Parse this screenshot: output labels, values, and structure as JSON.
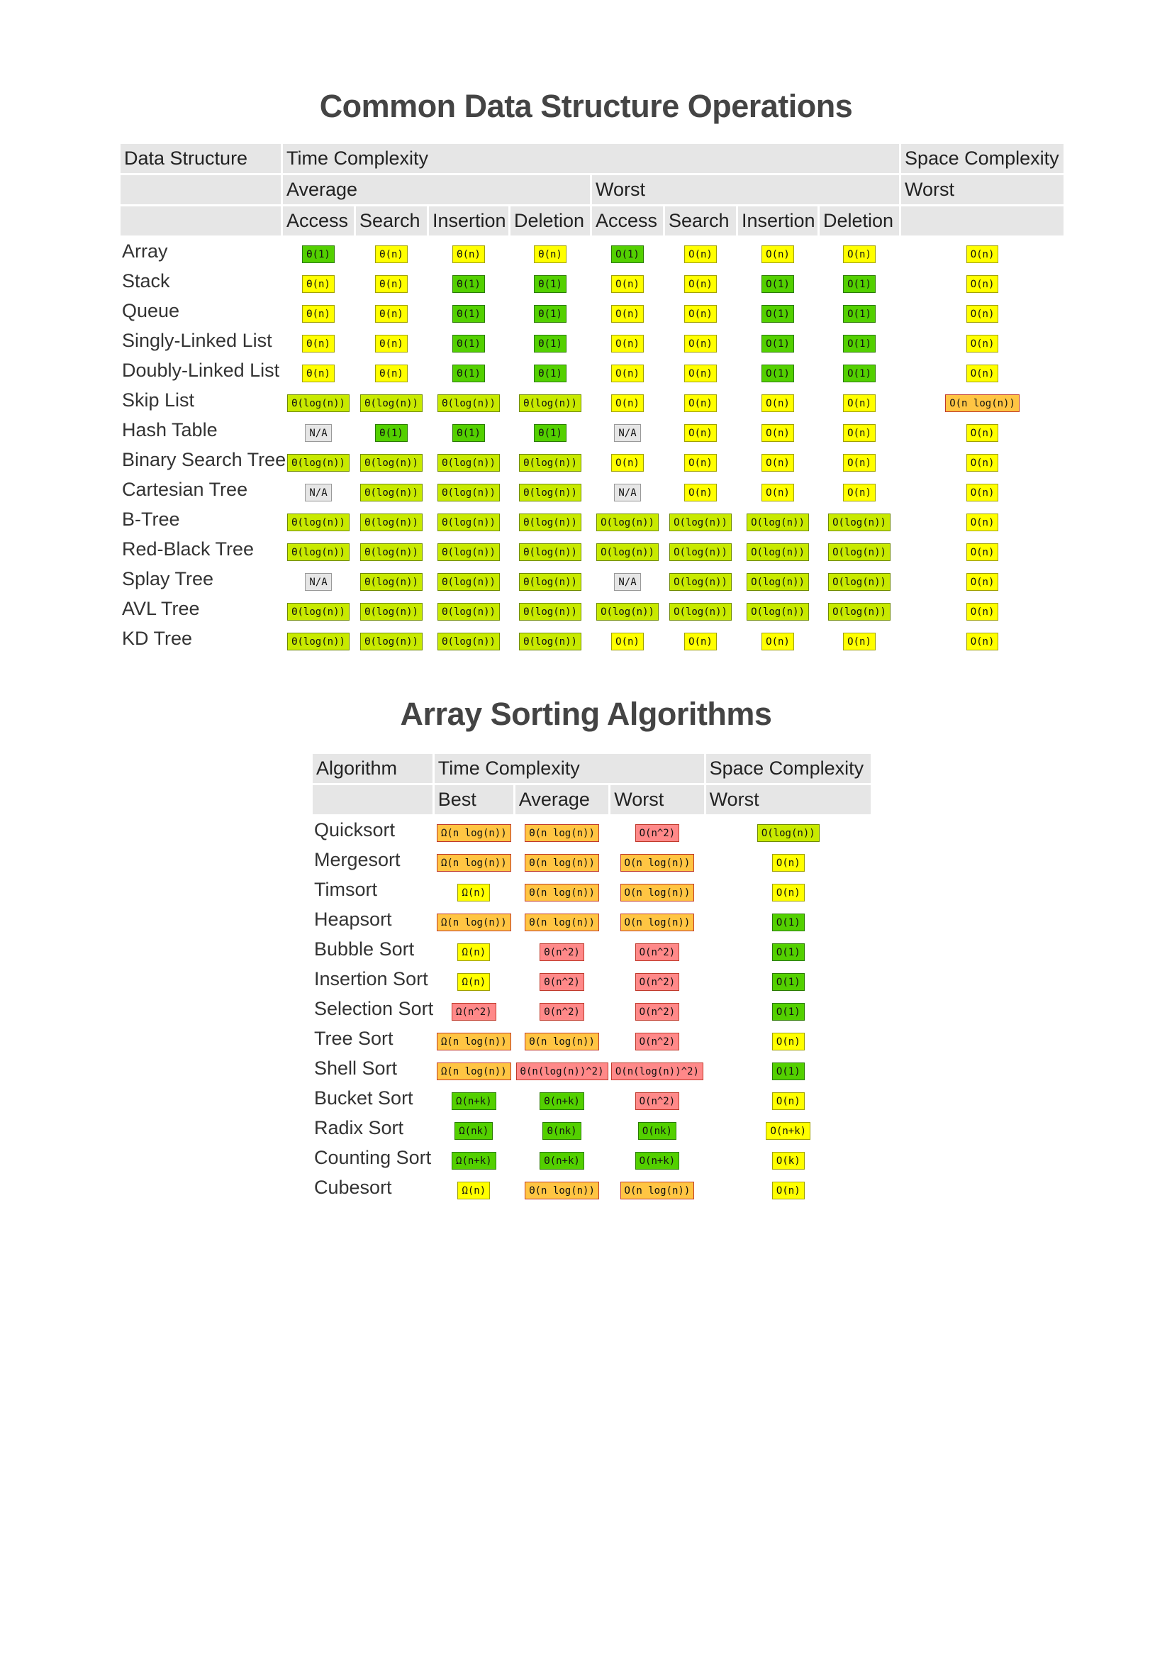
{
  "title_ds": "Common Data Structure Operations",
  "title_sort": "Array Sorting Algorithms",
  "ds_table": {
    "headers": {
      "data_structure": "Data Structure",
      "time_complexity": "Time Complexity",
      "space_complexity": "Space Complexity",
      "average": "Average",
      "worst": "Worst",
      "space_worst": "Worst",
      "ops": [
        "Access",
        "Search",
        "Insertion",
        "Deletion",
        "Access",
        "Search",
        "Insertion",
        "Deletion"
      ]
    },
    "rows": [
      {
        "name": "Array",
        "cells": [
          [
            "Θ(1)",
            "green"
          ],
          [
            "Θ(n)",
            "yellow"
          ],
          [
            "Θ(n)",
            "yellow"
          ],
          [
            "Θ(n)",
            "yellow"
          ],
          [
            "O(1)",
            "green"
          ],
          [
            "O(n)",
            "yellow"
          ],
          [
            "O(n)",
            "yellow"
          ],
          [
            "O(n)",
            "yellow"
          ],
          [
            "O(n)",
            "yellow"
          ]
        ]
      },
      {
        "name": "Stack",
        "cells": [
          [
            "Θ(n)",
            "yellow"
          ],
          [
            "Θ(n)",
            "yellow"
          ],
          [
            "Θ(1)",
            "green"
          ],
          [
            "Θ(1)",
            "green"
          ],
          [
            "O(n)",
            "yellow"
          ],
          [
            "O(n)",
            "yellow"
          ],
          [
            "O(1)",
            "green"
          ],
          [
            "O(1)",
            "green"
          ],
          [
            "O(n)",
            "yellow"
          ]
        ]
      },
      {
        "name": "Queue",
        "cells": [
          [
            "Θ(n)",
            "yellow"
          ],
          [
            "Θ(n)",
            "yellow"
          ],
          [
            "Θ(1)",
            "green"
          ],
          [
            "Θ(1)",
            "green"
          ],
          [
            "O(n)",
            "yellow"
          ],
          [
            "O(n)",
            "yellow"
          ],
          [
            "O(1)",
            "green"
          ],
          [
            "O(1)",
            "green"
          ],
          [
            "O(n)",
            "yellow"
          ]
        ]
      },
      {
        "name": "Singly-Linked List",
        "cells": [
          [
            "Θ(n)",
            "yellow"
          ],
          [
            "Θ(n)",
            "yellow"
          ],
          [
            "Θ(1)",
            "green"
          ],
          [
            "Θ(1)",
            "green"
          ],
          [
            "O(n)",
            "yellow"
          ],
          [
            "O(n)",
            "yellow"
          ],
          [
            "O(1)",
            "green"
          ],
          [
            "O(1)",
            "green"
          ],
          [
            "O(n)",
            "yellow"
          ]
        ]
      },
      {
        "name": "Doubly-Linked List",
        "cells": [
          [
            "Θ(n)",
            "yellow"
          ],
          [
            "Θ(n)",
            "yellow"
          ],
          [
            "Θ(1)",
            "green"
          ],
          [
            "Θ(1)",
            "green"
          ],
          [
            "O(n)",
            "yellow"
          ],
          [
            "O(n)",
            "yellow"
          ],
          [
            "O(1)",
            "green"
          ],
          [
            "O(1)",
            "green"
          ],
          [
            "O(n)",
            "yellow"
          ]
        ]
      },
      {
        "name": "Skip List",
        "cells": [
          [
            "Θ(log(n))",
            "lgreen"
          ],
          [
            "Θ(log(n))",
            "lgreen"
          ],
          [
            "Θ(log(n))",
            "lgreen"
          ],
          [
            "Θ(log(n))",
            "lgreen"
          ],
          [
            "O(n)",
            "yellow"
          ],
          [
            "O(n)",
            "yellow"
          ],
          [
            "O(n)",
            "yellow"
          ],
          [
            "O(n)",
            "yellow"
          ],
          [
            "O(n log(n))",
            "orange"
          ]
        ]
      },
      {
        "name": "Hash Table",
        "cells": [
          [
            "N/A",
            "gray"
          ],
          [
            "Θ(1)",
            "green"
          ],
          [
            "Θ(1)",
            "green"
          ],
          [
            "Θ(1)",
            "green"
          ],
          [
            "N/A",
            "gray"
          ],
          [
            "O(n)",
            "yellow"
          ],
          [
            "O(n)",
            "yellow"
          ],
          [
            "O(n)",
            "yellow"
          ],
          [
            "O(n)",
            "yellow"
          ]
        ]
      },
      {
        "name": "Binary Search Tree",
        "cells": [
          [
            "Θ(log(n))",
            "lgreen"
          ],
          [
            "Θ(log(n))",
            "lgreen"
          ],
          [
            "Θ(log(n))",
            "lgreen"
          ],
          [
            "Θ(log(n))",
            "lgreen"
          ],
          [
            "O(n)",
            "yellow"
          ],
          [
            "O(n)",
            "yellow"
          ],
          [
            "O(n)",
            "yellow"
          ],
          [
            "O(n)",
            "yellow"
          ],
          [
            "O(n)",
            "yellow"
          ]
        ]
      },
      {
        "name": "Cartesian Tree",
        "cells": [
          [
            "N/A",
            "gray"
          ],
          [
            "Θ(log(n))",
            "lgreen"
          ],
          [
            "Θ(log(n))",
            "lgreen"
          ],
          [
            "Θ(log(n))",
            "lgreen"
          ],
          [
            "N/A",
            "gray"
          ],
          [
            "O(n)",
            "yellow"
          ],
          [
            "O(n)",
            "yellow"
          ],
          [
            "O(n)",
            "yellow"
          ],
          [
            "O(n)",
            "yellow"
          ]
        ]
      },
      {
        "name": "B-Tree",
        "cells": [
          [
            "Θ(log(n))",
            "lgreen"
          ],
          [
            "Θ(log(n))",
            "lgreen"
          ],
          [
            "Θ(log(n))",
            "lgreen"
          ],
          [
            "Θ(log(n))",
            "lgreen"
          ],
          [
            "O(log(n))",
            "lgreen"
          ],
          [
            "O(log(n))",
            "lgreen"
          ],
          [
            "O(log(n))",
            "lgreen"
          ],
          [
            "O(log(n))",
            "lgreen"
          ],
          [
            "O(n)",
            "yellow"
          ]
        ]
      },
      {
        "name": "Red-Black Tree",
        "cells": [
          [
            "Θ(log(n))",
            "lgreen"
          ],
          [
            "Θ(log(n))",
            "lgreen"
          ],
          [
            "Θ(log(n))",
            "lgreen"
          ],
          [
            "Θ(log(n))",
            "lgreen"
          ],
          [
            "O(log(n))",
            "lgreen"
          ],
          [
            "O(log(n))",
            "lgreen"
          ],
          [
            "O(log(n))",
            "lgreen"
          ],
          [
            "O(log(n))",
            "lgreen"
          ],
          [
            "O(n)",
            "yellow"
          ]
        ]
      },
      {
        "name": "Splay Tree",
        "cells": [
          [
            "N/A",
            "gray"
          ],
          [
            "Θ(log(n))",
            "lgreen"
          ],
          [
            "Θ(log(n))",
            "lgreen"
          ],
          [
            "Θ(log(n))",
            "lgreen"
          ],
          [
            "N/A",
            "gray"
          ],
          [
            "O(log(n))",
            "lgreen"
          ],
          [
            "O(log(n))",
            "lgreen"
          ],
          [
            "O(log(n))",
            "lgreen"
          ],
          [
            "O(n)",
            "yellow"
          ]
        ]
      },
      {
        "name": "AVL Tree",
        "cells": [
          [
            "Θ(log(n))",
            "lgreen"
          ],
          [
            "Θ(log(n))",
            "lgreen"
          ],
          [
            "Θ(log(n))",
            "lgreen"
          ],
          [
            "Θ(log(n))",
            "lgreen"
          ],
          [
            "O(log(n))",
            "lgreen"
          ],
          [
            "O(log(n))",
            "lgreen"
          ],
          [
            "O(log(n))",
            "lgreen"
          ],
          [
            "O(log(n))",
            "lgreen"
          ],
          [
            "O(n)",
            "yellow"
          ]
        ]
      },
      {
        "name": "KD Tree",
        "cells": [
          [
            "Θ(log(n))",
            "lgreen"
          ],
          [
            "Θ(log(n))",
            "lgreen"
          ],
          [
            "Θ(log(n))",
            "lgreen"
          ],
          [
            "Θ(log(n))",
            "lgreen"
          ],
          [
            "O(n)",
            "yellow"
          ],
          [
            "O(n)",
            "yellow"
          ],
          [
            "O(n)",
            "yellow"
          ],
          [
            "O(n)",
            "yellow"
          ],
          [
            "O(n)",
            "yellow"
          ]
        ]
      }
    ]
  },
  "sort_table": {
    "headers": {
      "algorithm": "Algorithm",
      "time_complexity": "Time Complexity",
      "space_complexity": "Space Complexity",
      "best": "Best",
      "average": "Average",
      "worst": "Worst",
      "space_worst": "Worst"
    },
    "rows": [
      {
        "name": "Quicksort",
        "cells": [
          [
            "Ω(n log(n))",
            "orange"
          ],
          [
            "Θ(n log(n))",
            "orange"
          ],
          [
            "O(n^2)",
            "red"
          ],
          [
            "O(log(n))",
            "lgreen"
          ]
        ]
      },
      {
        "name": "Mergesort",
        "cells": [
          [
            "Ω(n log(n))",
            "orange"
          ],
          [
            "Θ(n log(n))",
            "orange"
          ],
          [
            "O(n log(n))",
            "orange"
          ],
          [
            "O(n)",
            "yellow"
          ]
        ]
      },
      {
        "name": "Timsort",
        "cells": [
          [
            "Ω(n)",
            "yellow"
          ],
          [
            "Θ(n log(n))",
            "orange"
          ],
          [
            "O(n log(n))",
            "orange"
          ],
          [
            "O(n)",
            "yellow"
          ]
        ]
      },
      {
        "name": "Heapsort",
        "cells": [
          [
            "Ω(n log(n))",
            "orange"
          ],
          [
            "Θ(n log(n))",
            "orange"
          ],
          [
            "O(n log(n))",
            "orange"
          ],
          [
            "O(1)",
            "green"
          ]
        ]
      },
      {
        "name": "Bubble Sort",
        "cells": [
          [
            "Ω(n)",
            "yellow"
          ],
          [
            "Θ(n^2)",
            "red"
          ],
          [
            "O(n^2)",
            "red"
          ],
          [
            "O(1)",
            "green"
          ]
        ]
      },
      {
        "name": "Insertion Sort",
        "cells": [
          [
            "Ω(n)",
            "yellow"
          ],
          [
            "Θ(n^2)",
            "red"
          ],
          [
            "O(n^2)",
            "red"
          ],
          [
            "O(1)",
            "green"
          ]
        ]
      },
      {
        "name": "Selection Sort",
        "cells": [
          [
            "Ω(n^2)",
            "red"
          ],
          [
            "Θ(n^2)",
            "red"
          ],
          [
            "O(n^2)",
            "red"
          ],
          [
            "O(1)",
            "green"
          ]
        ]
      },
      {
        "name": "Tree Sort",
        "cells": [
          [
            "Ω(n log(n))",
            "orange"
          ],
          [
            "Θ(n log(n))",
            "orange"
          ],
          [
            "O(n^2)",
            "red"
          ],
          [
            "O(n)",
            "yellow"
          ]
        ]
      },
      {
        "name": "Shell Sort",
        "cells": [
          [
            "Ω(n log(n))",
            "orange"
          ],
          [
            "Θ(n(log(n))^2)",
            "red"
          ],
          [
            "O(n(log(n))^2)",
            "red"
          ],
          [
            "O(1)",
            "green"
          ]
        ]
      },
      {
        "name": "Bucket Sort",
        "cells": [
          [
            "Ω(n+k)",
            "green"
          ],
          [
            "Θ(n+k)",
            "green"
          ],
          [
            "O(n^2)",
            "red"
          ],
          [
            "O(n)",
            "yellow"
          ]
        ]
      },
      {
        "name": "Radix Sort",
        "cells": [
          [
            "Ω(nk)",
            "green"
          ],
          [
            "Θ(nk)",
            "green"
          ],
          [
            "O(nk)",
            "green"
          ],
          [
            "O(n+k)",
            "yellow"
          ]
        ]
      },
      {
        "name": "Counting Sort",
        "cells": [
          [
            "Ω(n+k)",
            "green"
          ],
          [
            "Θ(n+k)",
            "green"
          ],
          [
            "O(n+k)",
            "green"
          ],
          [
            "O(k)",
            "yellow"
          ]
        ]
      },
      {
        "name": "Cubesort",
        "cells": [
          [
            "Ω(n)",
            "yellow"
          ],
          [
            "Θ(n log(n))",
            "orange"
          ],
          [
            "O(n log(n))",
            "orange"
          ],
          [
            "O(n)",
            "yellow"
          ]
        ]
      }
    ]
  }
}
